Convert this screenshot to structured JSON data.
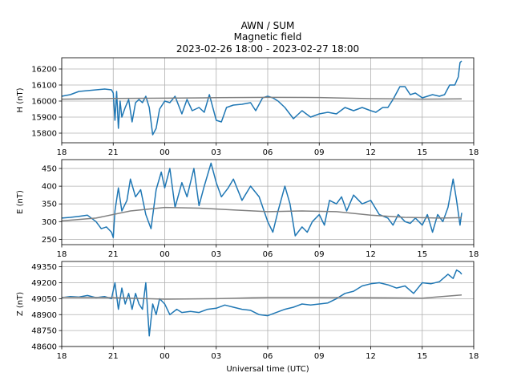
{
  "title": {
    "line1": "AWN / SUM",
    "line2": "Magnetic field",
    "line3": "2023-02-26 18:00 - 2023-02-27 18:00"
  },
  "xlabel": "Universal time (UTC)",
  "colors": {
    "data": "#1f77b4",
    "baseline": "#808080",
    "grid": "#b0b0b0"
  },
  "chart_data": [
    {
      "type": "line",
      "ylabel": "H (nT)",
      "xlim": [
        18,
        42
      ],
      "ylim": [
        15740,
        16270
      ],
      "xticks": [
        18,
        21,
        24,
        27,
        30,
        33,
        36,
        39,
        42
      ],
      "xtick_labels": [
        "18",
        "21",
        "00",
        "03",
        "06",
        "09",
        "12",
        "15",
        "18"
      ],
      "yticks": [
        15800,
        15900,
        16000,
        16100,
        16200
      ],
      "ytick_labels": [
        "15800",
        "15900",
        "16000",
        "16100",
        "16200"
      ],
      "grid": true,
      "series": [
        {
          "role": "data",
          "x": [
            18,
            18.5,
            19,
            19.5,
            20,
            20.5,
            20.9,
            21.0,
            21.1,
            21.2,
            21.3,
            21.4,
            21.5,
            21.7,
            21.9,
            22.1,
            22.3,
            22.5,
            22.7,
            22.9,
            23.1,
            23.3,
            23.5,
            23.7,
            24.0,
            24.3,
            24.6,
            25.0,
            25.3,
            25.6,
            26.0,
            26.3,
            26.6,
            27.0,
            27.3,
            27.6,
            28.0,
            28.5,
            29.0,
            29.3,
            29.7,
            30.0,
            30.3,
            30.6,
            31.0,
            31.5,
            32.0,
            32.5,
            33.0,
            33.5,
            34.0,
            34.5,
            35.0,
            35.5,
            36.0,
            36.3,
            36.7,
            37.0,
            37.3,
            37.7,
            38.0,
            38.3,
            38.6,
            39.0,
            39.3,
            39.6,
            40.0,
            40.3,
            40.6,
            40.9,
            41.1,
            41.2,
            41.3
          ],
          "values": [
            16030,
            16040,
            16060,
            16065,
            16070,
            16075,
            16070,
            16050,
            15880,
            16060,
            15830,
            16000,
            15900,
            15960,
            16010,
            15870,
            15990,
            16010,
            15990,
            16030,
            15960,
            15790,
            15830,
            15950,
            16000,
            15990,
            16030,
            15920,
            16010,
            15940,
            15960,
            15930,
            16040,
            15880,
            15870,
            15960,
            15975,
            15980,
            15990,
            15940,
            16020,
            16030,
            16020,
            16000,
            15960,
            15890,
            15940,
            15900,
            15920,
            15930,
            15920,
            15960,
            15940,
            15960,
            15940,
            15930,
            15960,
            15960,
            16010,
            16090,
            16090,
            16040,
            16050,
            16020,
            16030,
            16040,
            16030,
            16040,
            16100,
            16100,
            16150,
            16240,
            16250
          ]
        },
        {
          "role": "baseline",
          "x": [
            18,
            21,
            24,
            27,
            30,
            33,
            36,
            39,
            41.3
          ],
          "values": [
            16012,
            16016,
            16018,
            16021,
            16023,
            16022,
            16015,
            16012,
            16014
          ]
        }
      ]
    },
    {
      "type": "line",
      "ylabel": "E (nT)",
      "xlim": [
        18,
        42
      ],
      "ylim": [
        235,
        475
      ],
      "xticks": [
        18,
        21,
        24,
        27,
        30,
        33,
        36,
        39,
        42
      ],
      "xtick_labels": [
        "18",
        "21",
        "00",
        "03",
        "06",
        "09",
        "12",
        "15",
        "18"
      ],
      "yticks": [
        250,
        300,
        350,
        400,
        450
      ],
      "ytick_labels": [
        "250",
        "300",
        "350",
        "400",
        "450"
      ],
      "grid": true,
      "series": [
        {
          "role": "data",
          "x": [
            18,
            18.5,
            19,
            19.5,
            20,
            20.3,
            20.6,
            20.9,
            21.0,
            21.1,
            21.3,
            21.5,
            21.8,
            22.0,
            22.3,
            22.6,
            22.9,
            23.2,
            23.5,
            23.8,
            24.0,
            24.3,
            24.6,
            25.0,
            25.3,
            25.7,
            26.0,
            26.3,
            26.7,
            27.0,
            27.3,
            27.7,
            28.0,
            28.5,
            29.0,
            29.5,
            30.0,
            30.3,
            30.6,
            31.0,
            31.3,
            31.6,
            32.0,
            32.3,
            32.6,
            33.0,
            33.3,
            33.6,
            34.0,
            34.3,
            34.6,
            35.0,
            35.5,
            36.0,
            36.5,
            37.0,
            37.3,
            37.6,
            38.0,
            38.3,
            38.6,
            39.0,
            39.3,
            39.6,
            39.9,
            40.2,
            40.5,
            40.8,
            41.0,
            41.2,
            41.3
          ],
          "values": [
            310,
            312,
            315,
            318,
            300,
            280,
            285,
            270,
            255,
            330,
            395,
            330,
            360,
            420,
            370,
            390,
            320,
            280,
            390,
            440,
            395,
            450,
            340,
            410,
            370,
            450,
            345,
            400,
            465,
            410,
            370,
            395,
            420,
            360,
            400,
            370,
            300,
            270,
            330,
            400,
            350,
            260,
            285,
            270,
            300,
            320,
            290,
            360,
            350,
            370,
            330,
            375,
            350,
            360,
            320,
            310,
            290,
            320,
            300,
            295,
            310,
            290,
            320,
            270,
            320,
            300,
            340,
            420,
            360,
            290,
            325
          ]
        },
        {
          "role": "baseline",
          "x": [
            18,
            20,
            22,
            24,
            26,
            28,
            30,
            32,
            34,
            36,
            38,
            40,
            41.3
          ],
          "values": [
            302,
            310,
            330,
            340,
            338,
            333,
            328,
            330,
            328,
            318,
            312,
            310,
            311
          ]
        }
      ]
    },
    {
      "type": "line",
      "ylabel": "Z (nT)",
      "xlim": [
        18,
        42
      ],
      "ylim": [
        48600,
        49400
      ],
      "xticks": [
        18,
        21,
        24,
        27,
        30,
        33,
        36,
        39,
        42
      ],
      "xtick_labels": [
        "18",
        "21",
        "00",
        "03",
        "06",
        "09",
        "12",
        "15",
        "18"
      ],
      "yticks": [
        48600,
        48750,
        48900,
        49050,
        49200,
        49350
      ],
      "ytick_labels": [
        "48600",
        "48750",
        "48900",
        "49050",
        "49200",
        "49350"
      ],
      "grid": true,
      "series": [
        {
          "role": "data",
          "x": [
            18,
            18.5,
            19,
            19.5,
            20,
            20.5,
            20.9,
            21.1,
            21.3,
            21.5,
            21.7,
            21.9,
            22.1,
            22.3,
            22.5,
            22.7,
            22.9,
            23.1,
            23.3,
            23.5,
            23.7,
            24.0,
            24.3,
            24.7,
            25.0,
            25.5,
            26.0,
            26.5,
            27.0,
            27.5,
            28.0,
            28.5,
            29.0,
            29.5,
            30.0,
            30.5,
            31.0,
            31.5,
            32.0,
            32.5,
            33.0,
            33.5,
            34.0,
            34.5,
            35.0,
            35.5,
            36.0,
            36.5,
            37.0,
            37.5,
            38.0,
            38.5,
            39.0,
            39.5,
            40.0,
            40.5,
            40.8,
            41.0,
            41.2,
            41.3
          ],
          "values": [
            49060,
            49070,
            49065,
            49080,
            49060,
            49070,
            49050,
            49200,
            48950,
            49150,
            49000,
            49100,
            48950,
            49100,
            49000,
            48950,
            49200,
            48700,
            49000,
            48900,
            49050,
            49000,
            48900,
            48950,
            48920,
            48930,
            48920,
            48950,
            48960,
            48990,
            48970,
            48950,
            48940,
            48900,
            48890,
            48920,
            48950,
            48970,
            49000,
            48990,
            49000,
            49010,
            49050,
            49100,
            49120,
            49170,
            49190,
            49200,
            49180,
            49150,
            49170,
            49100,
            49200,
            49190,
            49210,
            49280,
            49240,
            49320,
            49300,
            49280
          ]
        },
        {
          "role": "baseline",
          "x": [
            18,
            21,
            24,
            27,
            30,
            33,
            36,
            39,
            41.3
          ],
          "values": [
            49062,
            49060,
            49045,
            49050,
            49062,
            49062,
            49060,
            49055,
            49085
          ]
        }
      ]
    }
  ]
}
